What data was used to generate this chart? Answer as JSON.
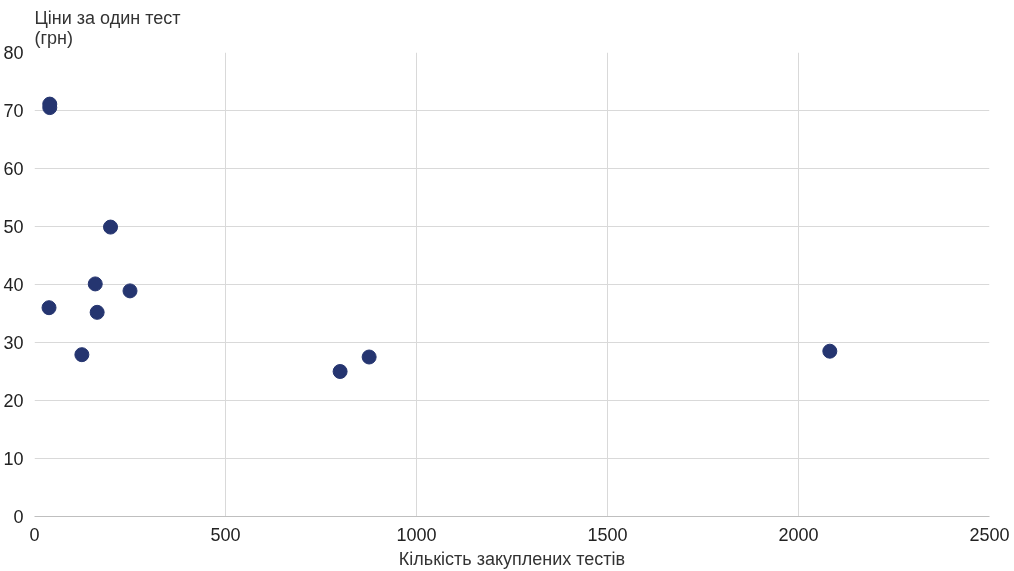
{
  "chart_data": {
    "type": "scatter",
    "ylabel": "Ціни за один тест\n(грн)",
    "xlabel": "Кількість закуплених тестів",
    "x": [
      40,
      40,
      199,
      159,
      250,
      38,
      164,
      124,
      800,
      876,
      2082
    ],
    "values": [
      71.1,
      70.5,
      49.9,
      40.1,
      38.9,
      36.0,
      35.2,
      27.9,
      25.0,
      27.5,
      28.5
    ],
    "color": "#253570",
    "marker": "circle",
    "grid": true,
    "xlim": [
      0,
      2500
    ],
    "xticks": [
      0,
      500,
      1000,
      1500,
      2000,
      2500
    ],
    "ylim": [
      0,
      80
    ],
    "yticks": [
      0,
      10,
      20,
      30,
      40,
      50,
      60,
      70,
      80
    ]
  }
}
